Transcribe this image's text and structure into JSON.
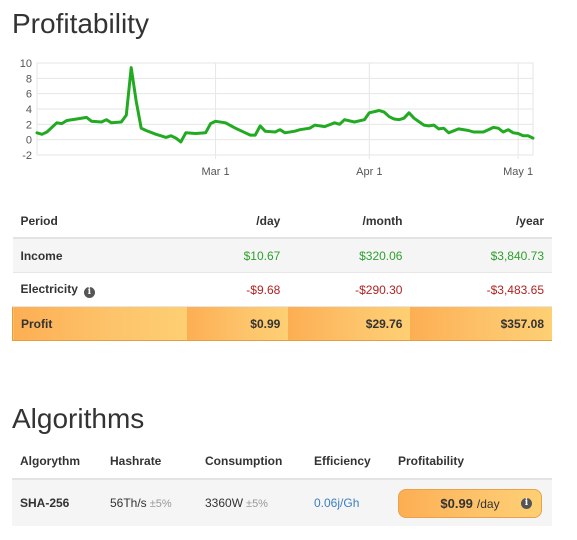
{
  "profitability": {
    "title": "Profitability",
    "columns": [
      "Period",
      "/day",
      "/month",
      "/year"
    ],
    "rows": {
      "income": {
        "label": "Income",
        "day": "$10.67",
        "month": "$320.06",
        "year": "$3,840.73"
      },
      "electricity": {
        "label": "Electricity",
        "day": "-$9.68",
        "month": "-$290.30",
        "year": "-$3,483.65"
      },
      "profit": {
        "label": "Profit",
        "day": "$0.99",
        "month": "$29.76",
        "year": "$357.08"
      }
    }
  },
  "algorithms": {
    "title": "Algorithms",
    "columns": [
      "Algorythm",
      "Hashrate",
      "Consumption",
      "Efficiency",
      "Profitability"
    ],
    "row": {
      "name": "SHA-256",
      "hashrate": "56Th/s",
      "hashrate_tol": "±5%",
      "consumption": "3360W",
      "consumption_tol": "±5%",
      "efficiency": "0.06j/Gh",
      "profitability": "$0.99",
      "profitability_unit": "/day"
    }
  },
  "colors": {
    "line": "#22aa22",
    "positive": "#2ea02e",
    "negative": "#b22222",
    "profit_bg": "#fdc36a",
    "link": "#3a7fc1"
  },
  "icons": {
    "info": "info-circle-icon"
  },
  "chart_data": {
    "type": "line",
    "title": "",
    "xlabel": "",
    "ylabel": "",
    "ylim": [
      -2,
      10
    ],
    "yticks": [
      10,
      8,
      6,
      4,
      2,
      0,
      -2
    ],
    "grid": true,
    "xdomain": [
      "2024-01-25",
      "2024-05-04"
    ],
    "xticks": [
      {
        "date": "2024-03-01",
        "label": "Mar 1"
      },
      {
        "date": "2024-04-01",
        "label": "Apr 1"
      },
      {
        "date": "2024-05-01",
        "label": "May 1"
      }
    ],
    "series": [
      {
        "values": [
          [
            "2024-01-25",
            0.9
          ],
          [
            "2024-01-26",
            0.7
          ],
          [
            "2024-01-27",
            1.0
          ],
          [
            "2024-01-28",
            1.6
          ],
          [
            "2024-01-29",
            2.2
          ],
          [
            "2024-01-30",
            2.1
          ],
          [
            "2024-01-31",
            2.5
          ],
          [
            "2024-02-02",
            2.7
          ],
          [
            "2024-02-04",
            2.9
          ],
          [
            "2024-02-05",
            2.4
          ],
          [
            "2024-02-07",
            2.3
          ],
          [
            "2024-02-08",
            2.6
          ],
          [
            "2024-02-09",
            2.2
          ],
          [
            "2024-02-11",
            2.3
          ],
          [
            "2024-02-12",
            3.2
          ],
          [
            "2024-02-13",
            9.4
          ],
          [
            "2024-02-14",
            5.0
          ],
          [
            "2024-02-15",
            1.5
          ],
          [
            "2024-02-16",
            1.2
          ],
          [
            "2024-02-18",
            0.7
          ],
          [
            "2024-02-19",
            0.5
          ],
          [
            "2024-02-20",
            0.3
          ],
          [
            "2024-02-21",
            0.5
          ],
          [
            "2024-02-22",
            0.2
          ],
          [
            "2024-02-23",
            -0.3
          ],
          [
            "2024-02-24",
            0.9
          ],
          [
            "2024-02-26",
            0.8
          ],
          [
            "2024-02-28",
            0.9
          ],
          [
            "2024-02-29",
            2.1
          ],
          [
            "2024-03-01",
            2.4
          ],
          [
            "2024-03-03",
            2.2
          ],
          [
            "2024-03-05",
            1.5
          ],
          [
            "2024-03-07",
            0.9
          ],
          [
            "2024-03-08",
            0.6
          ],
          [
            "2024-03-09",
            0.6
          ],
          [
            "2024-03-10",
            1.8
          ],
          [
            "2024-03-11",
            1.1
          ],
          [
            "2024-03-13",
            1.0
          ],
          [
            "2024-03-14",
            1.3
          ],
          [
            "2024-03-15",
            0.9
          ],
          [
            "2024-03-17",
            1.1
          ],
          [
            "2024-03-18",
            1.3
          ],
          [
            "2024-03-20",
            1.5
          ],
          [
            "2024-03-21",
            1.9
          ],
          [
            "2024-03-23",
            1.7
          ],
          [
            "2024-03-25",
            2.2
          ],
          [
            "2024-03-26",
            2.0
          ],
          [
            "2024-03-27",
            2.6
          ],
          [
            "2024-03-29",
            2.3
          ],
          [
            "2024-03-31",
            2.6
          ],
          [
            "2024-04-01",
            3.5
          ],
          [
            "2024-04-03",
            3.8
          ],
          [
            "2024-04-04",
            3.6
          ],
          [
            "2024-04-05",
            3.0
          ],
          [
            "2024-04-06",
            2.7
          ],
          [
            "2024-04-07",
            2.6
          ],
          [
            "2024-04-08",
            2.8
          ],
          [
            "2024-04-09",
            3.5
          ],
          [
            "2024-04-10",
            2.8
          ],
          [
            "2024-04-12",
            1.9
          ],
          [
            "2024-04-13",
            1.8
          ],
          [
            "2024-04-14",
            1.9
          ],
          [
            "2024-04-15",
            1.4
          ],
          [
            "2024-04-16",
            1.5
          ],
          [
            "2024-04-17",
            0.9
          ],
          [
            "2024-04-19",
            1.4
          ],
          [
            "2024-04-21",
            1.2
          ],
          [
            "2024-04-22",
            1.0
          ],
          [
            "2024-04-24",
            1.0
          ],
          [
            "2024-04-25",
            1.3
          ],
          [
            "2024-04-26",
            1.6
          ],
          [
            "2024-04-27",
            1.5
          ],
          [
            "2024-04-28",
            1.0
          ],
          [
            "2024-04-29",
            1.3
          ],
          [
            "2024-04-30",
            0.9
          ],
          [
            "2024-05-01",
            0.8
          ],
          [
            "2024-05-02",
            0.5
          ],
          [
            "2024-05-03",
            0.5
          ],
          [
            "2024-05-04",
            0.2
          ]
        ]
      }
    ]
  }
}
